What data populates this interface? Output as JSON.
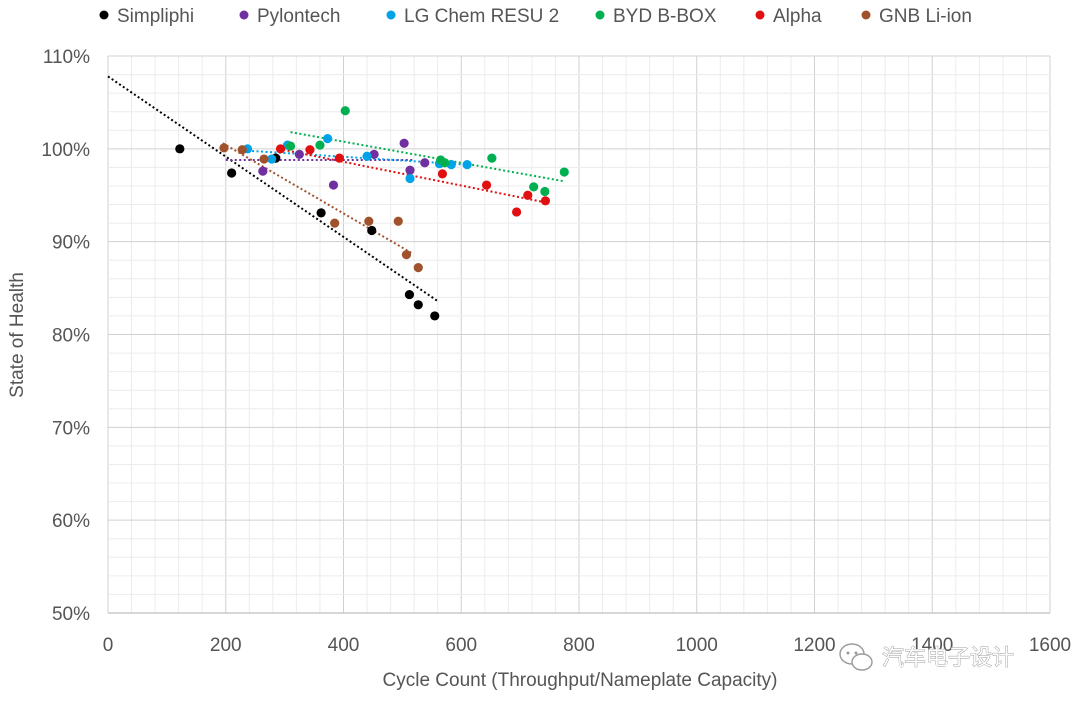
{
  "chart_data": {
    "type": "scatter",
    "xlabel": "Cycle Count (Throughput/Nameplate  Capacity)",
    "ylabel": "State of Health",
    "xlim": [
      0,
      1600
    ],
    "ylim": [
      50,
      110
    ],
    "x_ticks": [
      0,
      200,
      400,
      600,
      800,
      1000,
      1200,
      1400,
      1600
    ],
    "x_tick_labels": [
      "0",
      "200",
      "400",
      "600",
      "800",
      "1000",
      "1200",
      "1400",
      "1600"
    ],
    "y_ticks": [
      50,
      60,
      70,
      80,
      90,
      100,
      110
    ],
    "y_tick_labels": [
      "50%",
      "60%",
      "70%",
      "80%",
      "90%",
      "100%",
      "110%"
    ],
    "grid": true,
    "legend_position": "top",
    "series": [
      {
        "name": "Simpliphi",
        "color": "#000000",
        "x": [
          122,
          210,
          285,
          362,
          448,
          512,
          527,
          555
        ],
        "y": [
          100.0,
          97.4,
          99.0,
          93.1,
          91.2,
          84.3,
          83.2,
          82.0
        ],
        "trend": [
          [
            0,
            107.8
          ],
          [
            560,
            83.6
          ]
        ]
      },
      {
        "name": "Pylontech",
        "color": "#7030a0",
        "x": [
          263,
          325,
          383,
          452,
          503,
          513,
          538
        ],
        "y": [
          97.6,
          99.4,
          96.1,
          99.4,
          100.6,
          97.7,
          98.5
        ],
        "trend": [
          [
            200,
            98.8
          ],
          [
            520,
            98.8
          ]
        ]
      },
      {
        "name": "LG Chem RESU 2",
        "color": "#00a3e8",
        "x": [
          237,
          278,
          305,
          373,
          440,
          513,
          563,
          583,
          610
        ],
        "y": [
          100.0,
          98.9,
          100.4,
          101.1,
          99.2,
          96.8,
          98.4,
          98.3,
          98.3
        ],
        "trend": [
          [
            237,
            99.8
          ],
          [
            610,
            98.3
          ]
        ]
      },
      {
        "name": "BYD B-BOX",
        "color": "#00b050",
        "x": [
          310,
          360,
          403,
          565,
          572,
          652,
          723,
          742,
          775
        ],
        "y": [
          100.3,
          100.4,
          104.1,
          98.8,
          98.5,
          99.0,
          95.9,
          95.4,
          97.5
        ],
        "trend": [
          [
            310,
            101.8
          ],
          [
            775,
            96.5
          ]
        ]
      },
      {
        "name": "Alpha",
        "color": "#e01010",
        "x": [
          293,
          343,
          393,
          568,
          643,
          694,
          713,
          743
        ],
        "y": [
          100.0,
          99.9,
          99.0,
          97.3,
          96.1,
          93.2,
          95.0,
          94.4
        ],
        "trend": [
          [
            290,
            100.0
          ],
          [
            745,
            94.2
          ]
        ]
      },
      {
        "name": "GNB Li-ion",
        "color": "#a0522d",
        "x": [
          197,
          228,
          265,
          385,
          443,
          493,
          507,
          527
        ],
        "y": [
          100.1,
          99.9,
          98.9,
          92.0,
          92.2,
          92.2,
          88.6,
          87.2
        ],
        "trend": [
          [
            195,
            100.6
          ],
          [
            515,
            88.8
          ]
        ]
      }
    ]
  },
  "watermark": {
    "text": "汽车电子设计",
    "icon": "wechat-icon"
  }
}
